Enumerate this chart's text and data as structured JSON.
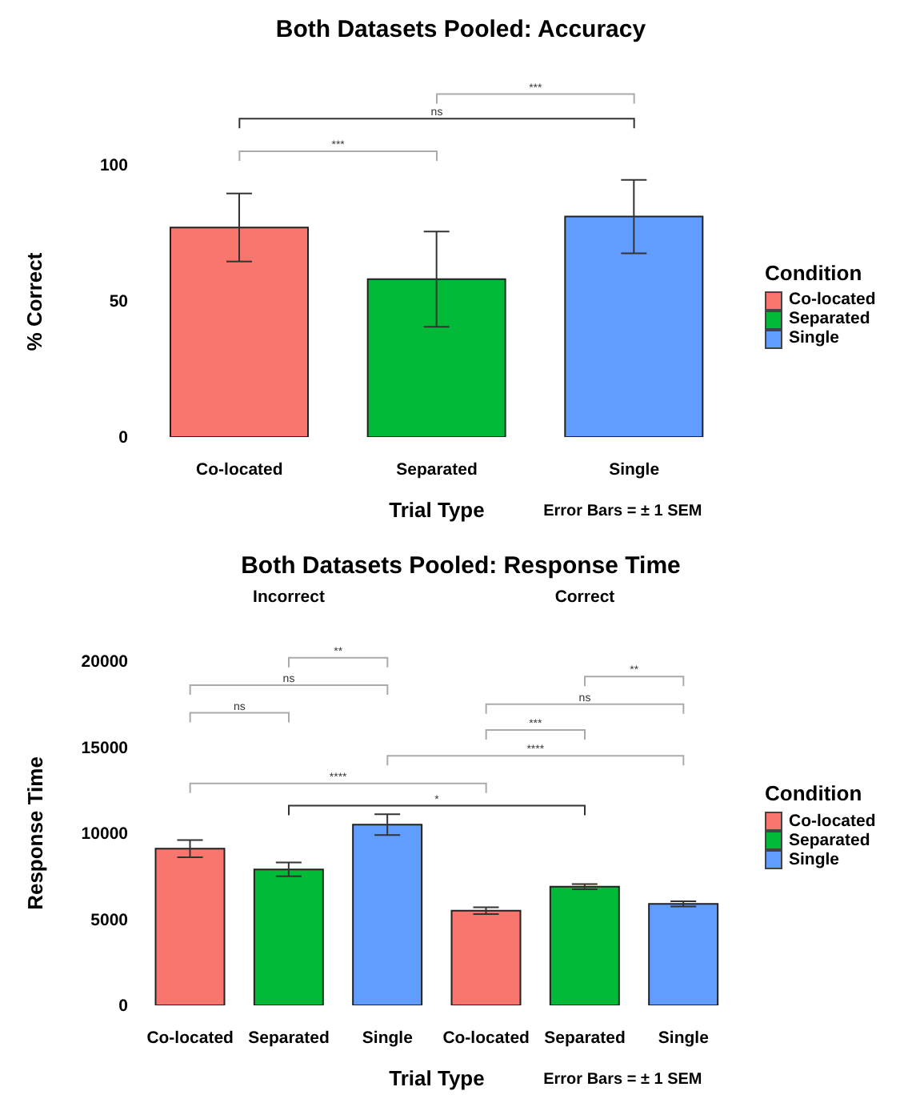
{
  "chart_data": [
    {
      "type": "bar",
      "title": "Both Datasets Pooled: Accuracy",
      "xlabel": "Trial Type",
      "ylabel": "% Correct",
      "legend_title": "Condition",
      "legend": "right",
      "stacked": true,
      "grid": false,
      "categories": [
        "Co-located",
        "Separated",
        "Single"
      ],
      "series": [
        {
          "name": "Co-located",
          "color": "#f8766d",
          "values": [
            77,
            null,
            null
          ],
          "errors": [
            12.5,
            null,
            null
          ]
        },
        {
          "name": "Separated",
          "color": "#00ba38",
          "values": [
            null,
            58,
            null
          ],
          "errors": [
            null,
            17.5,
            null
          ]
        },
        {
          "name": "Single",
          "color": "#619cff",
          "values": [
            null,
            null,
            81
          ],
          "errors": [
            null,
            null,
            13.5
          ]
        }
      ],
      "ylim": [
        0,
        100
      ],
      "yticks": [
        0,
        50,
        100
      ],
      "annotations": [
        "***",
        "ns",
        "***",
        "Error Bars = ± 1 SEM"
      ]
    },
    {
      "type": "bar",
      "title": "Both Datasets Pooled: Response Time",
      "xlabel": "Trial Type",
      "ylabel": "Response Time",
      "legend_title": "Condition",
      "legend": "right",
      "stacked": true,
      "grid": false,
      "categories": [
        "Co-located",
        "Separated",
        "Single",
        "Co-located",
        "Separated",
        "Single"
      ],
      "series": [
        {
          "name": "Co-located",
          "color": "#f8766d",
          "values": [
            9100,
            null,
            null,
            5500,
            null,
            null
          ],
          "errors": [
            500,
            null,
            null,
            200,
            null,
            null
          ]
        },
        {
          "name": "Separated",
          "color": "#00ba38",
          "values": [
            null,
            7900,
            null,
            null,
            6900,
            null
          ],
          "errors": [
            null,
            400,
            null,
            null,
            150,
            null
          ]
        },
        {
          "name": "Single",
          "color": "#619cff",
          "values": [
            null,
            null,
            10500,
            null,
            null,
            5900
          ],
          "errors": [
            null,
            null,
            600,
            null,
            null,
            150
          ]
        }
      ],
      "ylim": [
        0,
        20000
      ],
      "yticks": [
        0,
        5000,
        10000,
        15000,
        20000
      ],
      "annotations": [
        "Incorrect",
        "Correct",
        "**",
        "ns",
        "ns",
        "**",
        "ns",
        "***",
        "****",
        "****",
        "*",
        "Error Bars = ± 1 SEM"
      ]
    }
  ]
}
